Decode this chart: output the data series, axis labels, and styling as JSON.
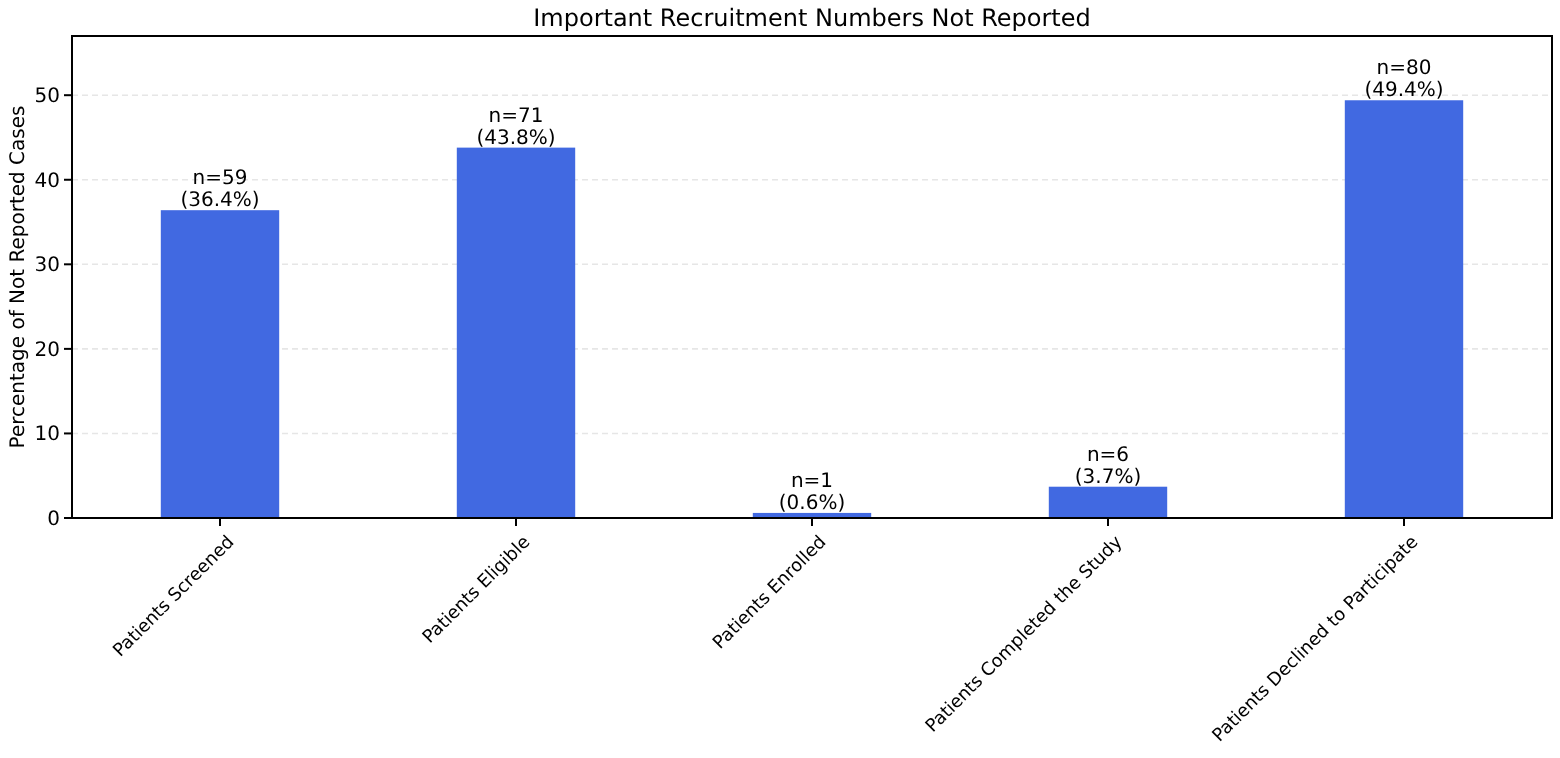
{
  "chart_data": {
    "type": "bar",
    "title": "Important Recruitment Numbers Not Reported",
    "ylabel": "Percentage of Not Reported Cases",
    "categories": [
      "Patients Screened",
      "Patients Eligible",
      "Patients Enrolled",
      "Patients Completed the Study",
      "Patients Declined to Participate"
    ],
    "values": [
      36.4,
      43.8,
      0.6,
      3.7,
      49.4
    ],
    "value_labels": [
      "n=59\n(36.4%)",
      "n=71\n(43.8%)",
      "n=1\n(0.6%)",
      "n=6\n(3.7%)",
      "n=80\n(49.4%)"
    ],
    "color": "#4169e1",
    "ylim": [
      0,
      57
    ],
    "yticks": [
      0,
      10,
      20,
      30,
      40,
      50
    ],
    "grid": "y"
  }
}
